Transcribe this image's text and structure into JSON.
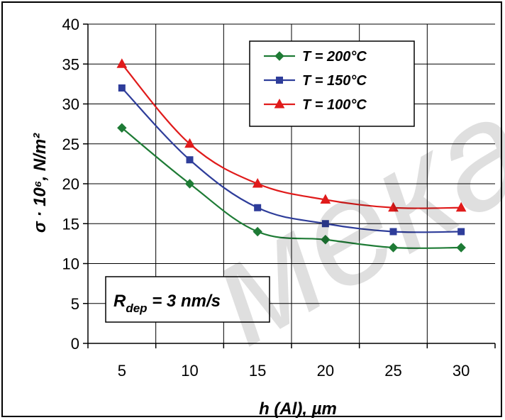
{
  "chart_data": {
    "type": "line",
    "x": [
      5,
      10,
      15,
      20,
      25,
      30
    ],
    "x_ticks": [
      "5",
      "10",
      "15",
      "20",
      "25",
      "30"
    ],
    "y_ticks": [
      "0",
      "5",
      "10",
      "15",
      "20",
      "25",
      "30",
      "35",
      "40"
    ],
    "xlim": [
      2.5,
      32.5
    ],
    "ylim": [
      0,
      40
    ],
    "xlabel": "h (Al), µm",
    "ylabel": "σ · 10⁶, N/m²",
    "grid": true,
    "legend_position": "top-right",
    "smooth": true,
    "series": [
      {
        "name": "T = 200°C",
        "color": "#1e7b35",
        "marker": "diamond",
        "values": [
          27,
          20,
          14,
          13,
          12,
          12
        ]
      },
      {
        "name": "T = 150°C",
        "color": "#2e3d9a",
        "marker": "square",
        "values": [
          32,
          23,
          17,
          15,
          14,
          14
        ]
      },
      {
        "name": "T = 100°C",
        "color": "#e01b1b",
        "marker": "triangle",
        "values": [
          35,
          25,
          20,
          18,
          17,
          17
        ]
      }
    ],
    "annotation": {
      "prefix": "R",
      "subscript": "dep",
      "rest": " = 3 nm/s"
    }
  },
  "watermark": "мека БГ"
}
